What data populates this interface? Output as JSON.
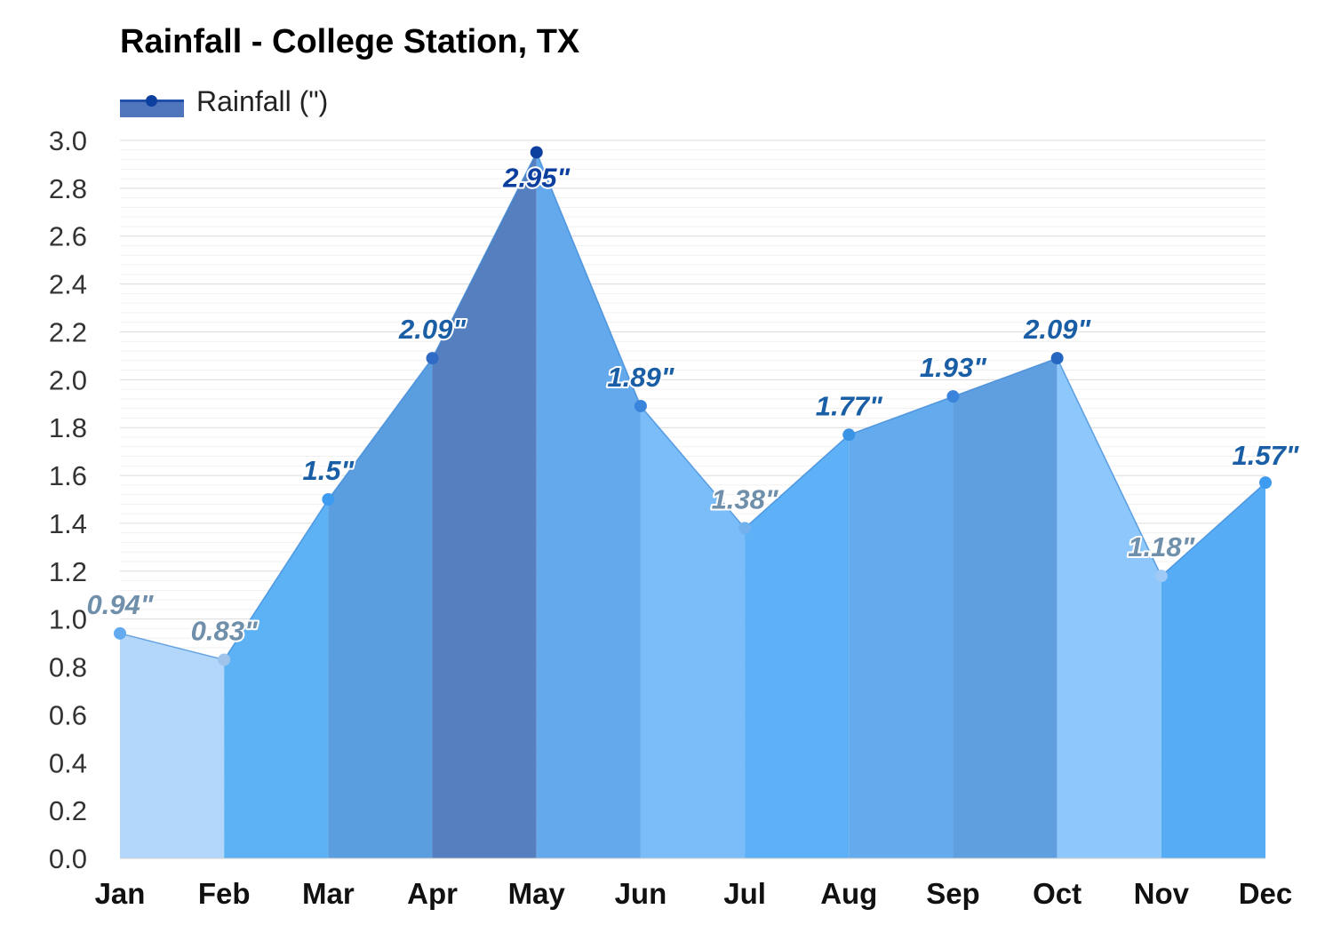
{
  "chart_data": {
    "type": "area",
    "title": "Rainfall - College Station, TX",
    "categories": [
      "Jan",
      "Feb",
      "Mar",
      "Apr",
      "May",
      "Jun",
      "Jul",
      "Aug",
      "Sep",
      "Oct",
      "Nov",
      "Dec"
    ],
    "series": [
      {
        "name": "Rainfall (\")",
        "values": [
          0.94,
          0.83,
          1.5,
          2.09,
          2.95,
          1.89,
          1.38,
          1.77,
          1.93,
          2.09,
          1.18,
          1.57
        ]
      }
    ],
    "data_labels": [
      "0.94\"",
      "0.83\"",
      "1.5\"",
      "2.09\"",
      "2.95\"",
      "1.89\"",
      "1.38\"",
      "1.77\"",
      "1.93\"",
      "2.09\"",
      "1.18\"",
      "1.57\""
    ],
    "y_ticks": [
      "0.0",
      "0.2",
      "0.4",
      "0.6",
      "0.8",
      "1.0",
      "1.2",
      "1.4",
      "1.6",
      "1.8",
      "2.0",
      "2.2",
      "2.4",
      "2.6",
      "2.8",
      "3.0"
    ],
    "ylim": [
      0,
      3.0
    ],
    "xlabel": "",
    "ylabel": "",
    "grid": true,
    "legend_position": "top-left",
    "segment_fill_colors": [
      "#b3d7fb",
      "#5db2f5",
      "#5b9ee0",
      "#557fbe",
      "#63a9ec",
      "#7bbdf8",
      "#5eb1f6",
      "#63abec",
      "#609fdf",
      "#8dc7fb",
      "#56adf6"
    ],
    "point_colors": [
      "#63aaf0",
      "#9fc4eb",
      "#3d9cf0",
      "#2f6bc4",
      "#0d3f9e",
      "#3b84dc",
      "#73b0ee",
      "#3b93e6",
      "#3b84dc",
      "#2566c0",
      "#9fcaf5",
      "#3d9cf0"
    ],
    "label_colors": [
      "#6f8faa",
      "#6f8faa",
      "#1a5ea5",
      "#1a5ea5",
      "#0d3f9e",
      "#1a5ea5",
      "#6f8faa",
      "#1a5ea5",
      "#1a5ea5",
      "#1a5ea5",
      "#6f8faa",
      "#1a5ea5"
    ],
    "line_color": "#3383d6",
    "legend_colors": {
      "fill": "#4f76bd",
      "line": "#1f4fa8",
      "dot": "#0d3f9e"
    }
  }
}
